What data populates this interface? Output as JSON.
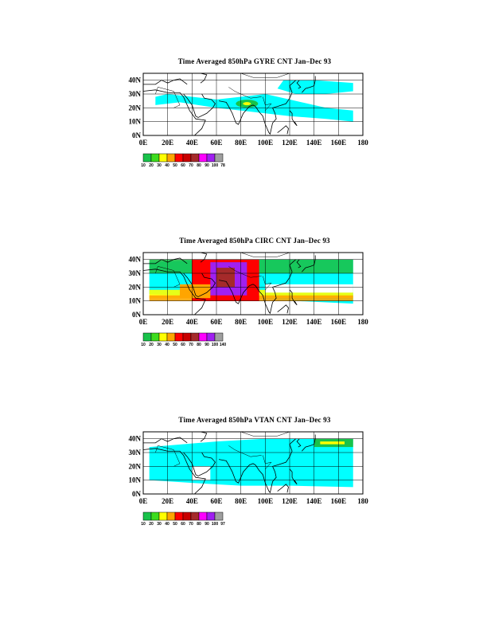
{
  "panels": [
    {
      "title": "Time Averaged 850hPa GYRE CNT Jan–Dec 93",
      "colorbar_labels": [
        "10",
        "20",
        "30",
        "40",
        "50",
        "60",
        "70",
        "80",
        "90",
        "100",
        "78"
      ],
      "max_value": "78"
    },
    {
      "title": "Time Averaged 850hPa CIRC CNT Jan–Dec 93",
      "colorbar_labels": [
        "10",
        "20",
        "30",
        "40",
        "50",
        "60",
        "70",
        "80",
        "90",
        "100",
        "140"
      ],
      "max_value": "140"
    },
    {
      "title": "Time Averaged 850hPa VTAN CNT Jan–Dec 93",
      "colorbar_labels": [
        "10",
        "20",
        "30",
        "40",
        "50",
        "60",
        "70",
        "80",
        "90",
        "100",
        "97"
      ],
      "max_value": "97"
    }
  ],
  "axes": {
    "lon_ticks": [
      "0E",
      "20E",
      "40E",
      "60E",
      "80E",
      "100E",
      "120E",
      "140E",
      "160E",
      "180"
    ],
    "lat_ticks": [
      "0N",
      "10N",
      "20N",
      "30N",
      "40N"
    ]
  },
  "colors": {
    "shade_cyan": "#00ffff",
    "levels": [
      "#19c24a",
      "#3ddc1e",
      "#ffff00",
      "#ffa500",
      "#ff0000",
      "#c80000",
      "#a52a2a",
      "#ff00ff",
      "#a020f0",
      "#9f9f9f"
    ]
  }
}
